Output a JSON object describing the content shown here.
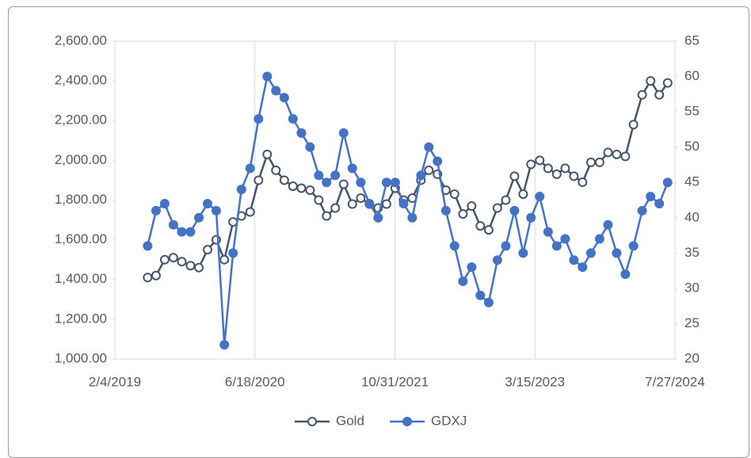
{
  "chart_data": {
    "type": "line",
    "x": [
      "6/1/2019",
      "7/1/2019",
      "8/1/2019",
      "9/1/2019",
      "10/1/2019",
      "11/1/2019",
      "12/1/2019",
      "1/1/2020",
      "2/1/2020",
      "3/1/2020",
      "4/1/2020",
      "5/1/2020",
      "6/1/2020",
      "7/1/2020",
      "8/1/2020",
      "9/1/2020",
      "10/1/2020",
      "11/1/2020",
      "12/1/2020",
      "1/1/2021",
      "2/1/2021",
      "3/1/2021",
      "4/1/2021",
      "5/1/2021",
      "6/1/2021",
      "7/1/2021",
      "8/1/2021",
      "9/1/2021",
      "10/1/2021",
      "11/1/2021",
      "12/1/2021",
      "1/1/2022",
      "2/1/2022",
      "3/1/2022",
      "4/1/2022",
      "5/1/2022",
      "6/1/2022",
      "7/1/2022",
      "8/1/2022",
      "9/1/2022",
      "10/1/2022",
      "11/1/2022",
      "12/1/2022",
      "1/1/2023",
      "2/1/2023",
      "3/1/2023",
      "4/1/2023",
      "5/1/2023",
      "6/1/2023",
      "7/1/2023",
      "8/1/2023",
      "9/1/2023",
      "10/1/2023",
      "11/1/2023",
      "12/1/2023",
      "1/1/2024",
      "2/1/2024",
      "3/1/2024",
      "4/1/2024",
      "5/1/2024",
      "6/1/2024",
      "7/1/2024"
    ],
    "xlim": [
      "2/4/2019",
      "7/27/2024"
    ],
    "xticks": [
      "2/4/2019",
      "6/18/2020",
      "10/31/2021",
      "3/15/2023",
      "7/27/2024"
    ],
    "ylim": [
      1000,
      2600
    ],
    "yticks": [
      {
        "value": 1000,
        "label": "1,000.00"
      },
      {
        "value": 1200,
        "label": "1,200.00"
      },
      {
        "value": 1400,
        "label": "1,400.00"
      },
      {
        "value": 1600,
        "label": "1,600.00"
      },
      {
        "value": 1800,
        "label": "1,800.00"
      },
      {
        "value": 2000,
        "label": "2,000.00"
      },
      {
        "value": 2200,
        "label": "2,200.00"
      },
      {
        "value": 2400,
        "label": "2,400.00"
      },
      {
        "value": 2600,
        "label": "2,600.00"
      }
    ],
    "y2lim": [
      20,
      65
    ],
    "y2ticks": [
      20,
      25,
      30,
      35,
      40,
      45,
      50,
      55,
      60,
      65
    ],
    "grid": "x",
    "legend": "bottom",
    "series": [
      {
        "name": "Gold",
        "color": "#44546a",
        "marker": "hollow",
        "values": [
          1410,
          1420,
          1500,
          1510,
          1490,
          1470,
          1460,
          1550,
          1600,
          1500,
          1690,
          1720,
          1740,
          1900,
          2030,
          1950,
          1900,
          1870,
          1860,
          1850,
          1800,
          1720,
          1760,
          1880,
          1780,
          1810,
          1780,
          1760,
          1780,
          1860,
          1800,
          1810,
          1900,
          1950,
          1930,
          1850,
          1830,
          1730,
          1770,
          1670,
          1650,
          1760,
          1800,
          1920,
          1830,
          1980,
          2000,
          1960,
          1930,
          1960,
          1920,
          1890,
          1990,
          1990,
          2040,
          2030,
          2020,
          2180,
          2330,
          2400,
          2330,
          2390
        ]
      },
      {
        "name": "GDXJ",
        "color": "#4472c4",
        "marker": "filled",
        "axis": "y2",
        "values": [
          36,
          41,
          42,
          39,
          38,
          38,
          40,
          42,
          41,
          22,
          35,
          44,
          47,
          54,
          60,
          58,
          57,
          54,
          52,
          50,
          46,
          45,
          46,
          52,
          47,
          45,
          42,
          40,
          45,
          45,
          42,
          40,
          46,
          50,
          48,
          41,
          36,
          31,
          33,
          29,
          28,
          34,
          36,
          41,
          35,
          40,
          43,
          38,
          36,
          37,
          34,
          33,
          35,
          37,
          39,
          35,
          32,
          36,
          41,
          43,
          42,
          45
        ]
      }
    ]
  }
}
